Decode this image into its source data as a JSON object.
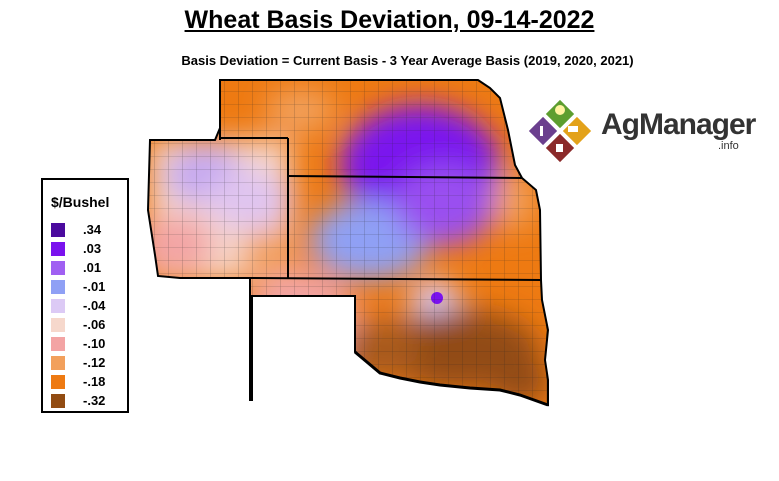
{
  "title": "Wheat Basis Deviation, 09-14-2022",
  "subtitle": "Basis Deviation = Current Basis - 3 Year Average Basis (2019, 2020, 2021)",
  "legend": {
    "title": "$/Bushel",
    "items": [
      {
        "label": ".34",
        "color": "#4b0a9e"
      },
      {
        "label": ".03",
        "color": "#7a12ee"
      },
      {
        "label": ".01",
        "color": "#a060f2"
      },
      {
        "label": "-.01",
        "color": "#8fa0f5"
      },
      {
        "label": "-.04",
        "color": "#dccaf5"
      },
      {
        "label": "-.06",
        "color": "#f6d8cc"
      },
      {
        "label": "-.10",
        "color": "#f3a4a4"
      },
      {
        "label": "-.12",
        "color": "#f2a05c"
      },
      {
        "label": "-.18",
        "color": "#ee7a12"
      },
      {
        "label": "-.32",
        "color": "#924c12"
      }
    ]
  },
  "logo": {
    "name": "AgManager",
    "suffix": ".info"
  }
}
